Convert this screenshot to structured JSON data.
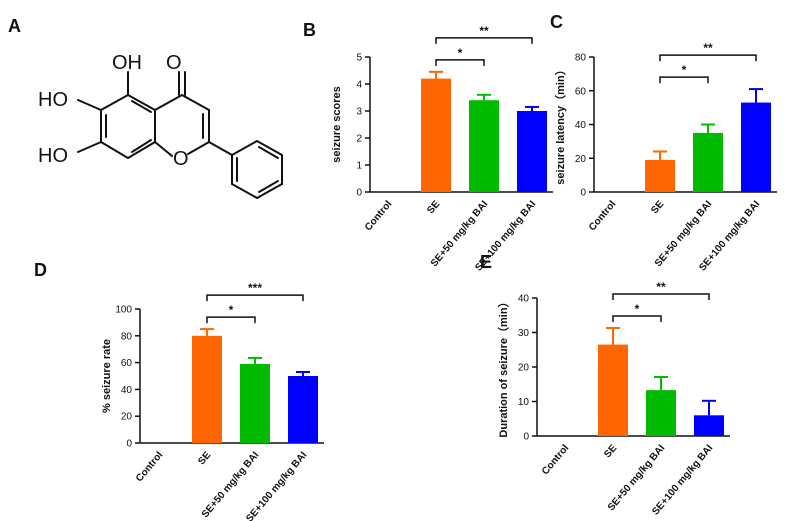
{
  "panel_a": {
    "label": "A",
    "atoms": {
      "oh_top": "OH",
      "oh_left_upper": "HO",
      "oh_left_lower": "HO",
      "carbonyl_o": "O",
      "ring_o": "O"
    }
  },
  "colors": {
    "control": "#cccccc",
    "se": "#ff6600",
    "bai50": "#00bb00",
    "bai100": "#0000ff",
    "axis": "#111111"
  },
  "chart_data": [
    {
      "panel": "B",
      "type": "bar",
      "categories": [
        "Control",
        "SE",
        "SE+50 mg/kg BAI",
        "SE+100 mg/kg BAI"
      ],
      "values": [
        0,
        4.2,
        3.4,
        3.0
      ],
      "errors": [
        0,
        0.25,
        0.2,
        0.15
      ],
      "ylabel": "seizure scores",
      "xlabel": "",
      "ylim": [
        0,
        5
      ],
      "yticks": [
        "0",
        "1",
        "2",
        "3",
        "4",
        "5"
      ],
      "brackets": [
        {
          "from": 1,
          "to": 2,
          "label": "*"
        },
        {
          "from": 1,
          "to": 3,
          "label": "**"
        }
      ]
    },
    {
      "panel": "C",
      "type": "bar",
      "categories": [
        "Control",
        "SE",
        "SE+50 mg/kg BAI",
        "SE+100 mg/kg BAI"
      ],
      "values": [
        0,
        19,
        35,
        53
      ],
      "errors": [
        0,
        5,
        5,
        8
      ],
      "ylabel": "seizure latency（min）",
      "xlabel": "",
      "ylim": [
        0,
        80
      ],
      "yticks": [
        "0",
        "20",
        "40",
        "60",
        "80"
      ],
      "brackets": [
        {
          "from": 1,
          "to": 2,
          "label": "*"
        },
        {
          "from": 1,
          "to": 3,
          "label": "**"
        }
      ]
    },
    {
      "panel": "D",
      "type": "bar",
      "categories": [
        "Control",
        "SE",
        "SE+50 mg/kg BAI",
        "SE+100 mg/kg BAI"
      ],
      "values": [
        0,
        80,
        59,
        50
      ],
      "errors": [
        0,
        5,
        4.5,
        3
      ],
      "ylabel": "% seizure rate",
      "xlabel": "",
      "ylim": [
        0,
        100
      ],
      "yticks": [
        "0",
        "20",
        "40",
        "60",
        "80",
        "100"
      ],
      "brackets": [
        {
          "from": 1,
          "to": 2,
          "label": "*"
        },
        {
          "from": 1,
          "to": 3,
          "label": "***"
        }
      ]
    },
    {
      "panel": "E",
      "type": "bar",
      "categories": [
        "Control",
        "SE",
        "SE+50 mg/kg BAI",
        "SE+100 mg/kg BAI"
      ],
      "values": [
        0,
        26.5,
        13.3,
        6
      ],
      "errors": [
        0,
        4.8,
        3.8,
        4.2
      ],
      "ylabel": "Duration of seizure（min）",
      "xlabel": "",
      "ylim": [
        0,
        40
      ],
      "yticks": [
        "0",
        "10",
        "20",
        "30",
        "40"
      ],
      "brackets": [
        {
          "from": 1,
          "to": 2,
          "label": "*"
        },
        {
          "from": 1,
          "to": 3,
          "label": "**"
        }
      ]
    }
  ]
}
